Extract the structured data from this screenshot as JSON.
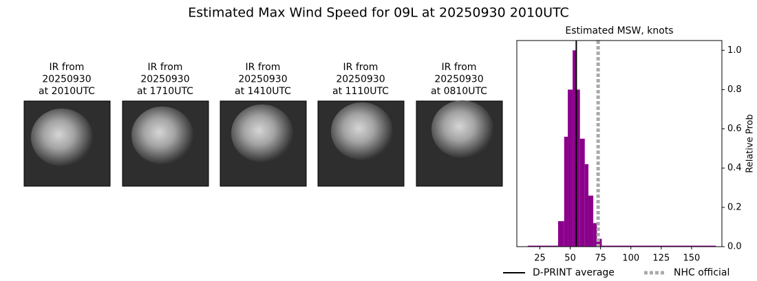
{
  "title": "Estimated Max Wind Speed for 09L at 20250930 2010UTC",
  "panels": [
    {
      "lines": [
        "IR from",
        "20250930",
        "at 2010UTC"
      ]
    },
    {
      "lines": [
        "IR from",
        "20250930",
        "at 1710UTC"
      ]
    },
    {
      "lines": [
        "IR from",
        "20250930",
        "at 1410UTC"
      ]
    },
    {
      "lines": [
        "IR from",
        "20250930",
        "at 1110UTC"
      ]
    },
    {
      "lines": [
        "IR from",
        "20250930",
        "at 0810UTC"
      ]
    }
  ],
  "chart_data": {
    "type": "histogram",
    "title": "Estimated MSW, knots",
    "y_label": "Relative Prob",
    "bins": [
      15,
      40,
      45,
      48,
      52,
      55,
      58,
      62,
      65,
      69,
      72,
      76,
      170
    ],
    "values": [
      0.005,
      0.13,
      0.56,
      0.8,
      1.0,
      0.8,
      0.55,
      0.42,
      0.26,
      0.12,
      0.04,
      0.005
    ],
    "color": "#8b008b",
    "xlim": [
      6,
      175
    ],
    "xticks": [
      25,
      50,
      75,
      100,
      125,
      150
    ],
    "ylim": [
      0,
      1.05
    ],
    "yticks": [
      {
        "value": 0,
        "label": "0.0"
      },
      0.2,
      0.4,
      0.6,
      0.8,
      {
        "value": 1,
        "label": "1.0"
      }
    ],
    "y_axis_side": "right",
    "reference_lines": [
      {
        "name": "D-PRINT average",
        "value": 55,
        "color": "#000000",
        "style": "solid"
      },
      {
        "name": "NHC official",
        "value": 73,
        "color": "#aaaaaa",
        "style": "dotted"
      }
    ],
    "legend": "bottom"
  }
}
